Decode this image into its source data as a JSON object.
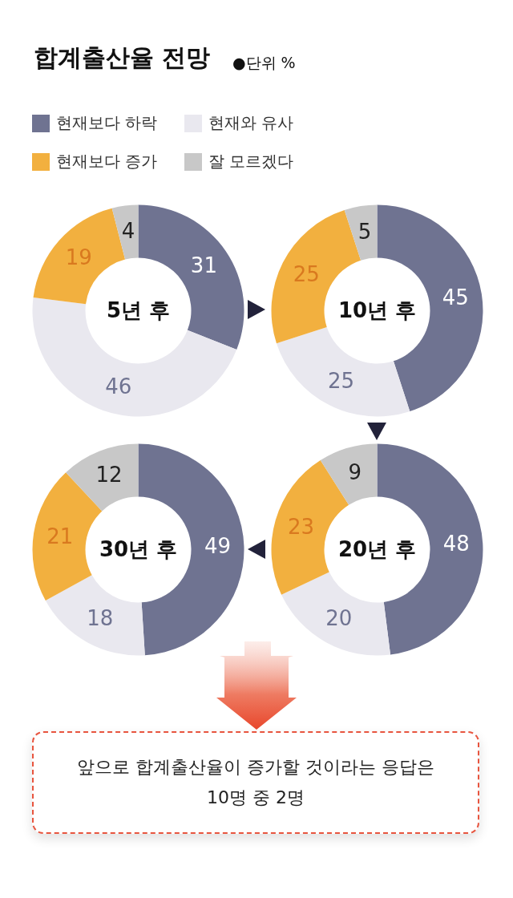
{
  "chart_data": [
    {
      "type": "donut",
      "title": "합계출산율 전망",
      "subtitle": "●단위 %",
      "legend": "top",
      "data_labels": true,
      "annotations": [
        "5년 후"
      ],
      "categories": [
        "현재보다 하락",
        "현재와 유사",
        "현재보다 증가",
        "잘 모르겠다"
      ],
      "colors": [
        "#6f7391",
        "#e9e8ef",
        "#f2b03f",
        "#c8c8c8"
      ],
      "values": [
        31,
        46,
        19,
        4
      ]
    },
    {
      "type": "donut",
      "data_labels": true,
      "annotations": [
        "10년 후"
      ],
      "categories": [
        null,
        null,
        null,
        null
      ],
      "colors": [
        "#6f7391",
        "#e9e8ef",
        "#f2b03f",
        "#c8c8c8"
      ],
      "values": [
        45,
        25,
        25,
        5
      ]
    },
    {
      "type": "donut",
      "data_labels": true,
      "annotations": [
        "30년 후"
      ],
      "categories": [
        null,
        null,
        null,
        null
      ],
      "colors": [
        "#6f7391",
        "#e9e8ef",
        "#f2b03f",
        "#c8c8c8"
      ],
      "values": [
        49,
        18,
        21,
        12
      ]
    },
    {
      "type": "donut",
      "data_labels": true,
      "annotations": [
        "20년 후",
        "앞으로 합계출산율이 증가할 것이라는 응답은 10명 중 2명"
      ],
      "categories": [
        null,
        null,
        null,
        null
      ],
      "colors": [
        "#6f7391",
        "#e9e8ef",
        "#f2b03f",
        "#c8c8c8"
      ],
      "values": [
        48,
        20,
        23,
        9
      ]
    }
  ]
}
